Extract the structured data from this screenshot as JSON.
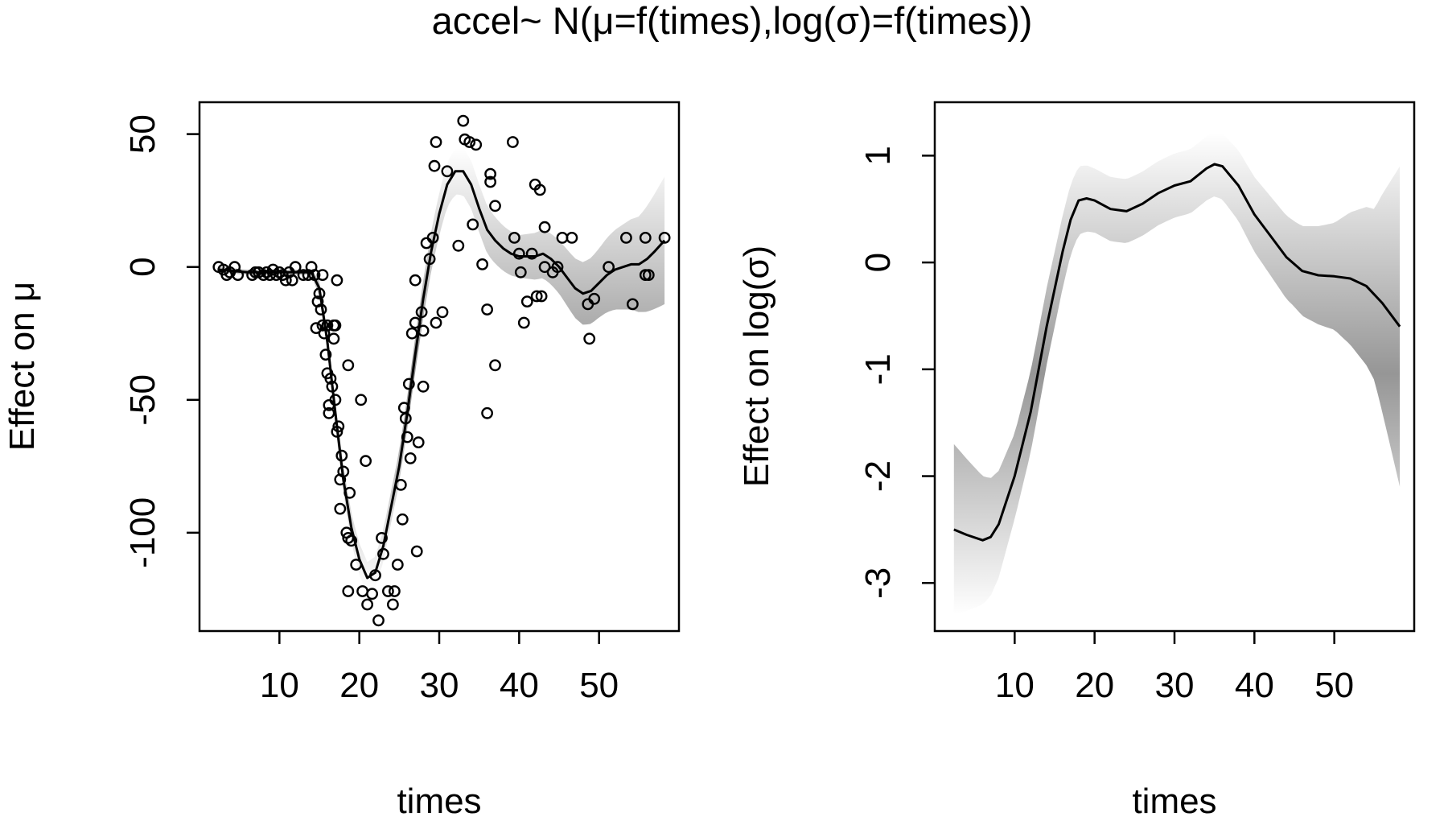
{
  "title": "accel~ N(μ=f(times),log(σ)=f(times))",
  "chart_data": [
    {
      "type": "scatter",
      "xlabel": "times",
      "ylabel": "Effect on μ",
      "xlim": [
        0,
        60
      ],
      "ylim": [
        -137,
        62
      ],
      "xticks": [
        10,
        20,
        30,
        40,
        50
      ],
      "yticks": [
        50,
        0,
        -50,
        -100
      ],
      "points": [
        [
          2.4,
          0
        ],
        [
          3.0,
          -1
        ],
        [
          3.4,
          -3
        ],
        [
          3.8,
          -2
        ],
        [
          4.4,
          0
        ],
        [
          4.8,
          -3
        ],
        [
          6.6,
          -3
        ],
        [
          7.0,
          -2
        ],
        [
          7.4,
          -2
        ],
        [
          8.0,
          -3
        ],
        [
          8.4,
          -2
        ],
        [
          8.8,
          -3
        ],
        [
          9.2,
          -1
        ],
        [
          9.6,
          -3
        ],
        [
          10.0,
          -2
        ],
        [
          10.4,
          -3
        ],
        [
          10.8,
          -5
        ],
        [
          11.2,
          -2
        ],
        [
          11.6,
          -5
        ],
        [
          12.0,
          0
        ],
        [
          13.0,
          -3
        ],
        [
          13.6,
          -3
        ],
        [
          14.0,
          0
        ],
        [
          14.4,
          -3
        ],
        [
          14.6,
          -23
        ],
        [
          14.8,
          -13
        ],
        [
          15.0,
          -10
        ],
        [
          15.2,
          -16
        ],
        [
          15.4,
          -3
        ],
        [
          15.4,
          -22
        ],
        [
          15.6,
          -25
        ],
        [
          15.8,
          -33
        ],
        [
          16.0,
          -22
        ],
        [
          16.0,
          -40
        ],
        [
          16.2,
          -55
        ],
        [
          16.2,
          -52
        ],
        [
          16.4,
          -42
        ],
        [
          16.6,
          -45
        ],
        [
          16.8,
          -22
        ],
        [
          16.8,
          -27
        ],
        [
          17.0,
          -22
        ],
        [
          17.0,
          -50
        ],
        [
          17.2,
          -5
        ],
        [
          17.2,
          -62
        ],
        [
          17.4,
          -60
        ],
        [
          17.6,
          -80
        ],
        [
          17.6,
          -91
        ],
        [
          17.8,
          -71
        ],
        [
          18.0,
          -77
        ],
        [
          18.4,
          -100
        ],
        [
          18.6,
          -102
        ],
        [
          18.8,
          -85
        ],
        [
          18.6,
          -37
        ],
        [
          19.0,
          -103
        ],
        [
          18.6,
          -122
        ],
        [
          19.6,
          -112
        ],
        [
          20.2,
          -50
        ],
        [
          20.4,
          -122
        ],
        [
          20.8,
          -73
        ],
        [
          21.0,
          -127
        ],
        [
          21.6,
          -123
        ],
        [
          22.0,
          -116
        ],
        [
          22.4,
          -133
        ],
        [
          22.8,
          -102
        ],
        [
          23.0,
          -108
        ],
        [
          23.6,
          -122
        ],
        [
          24.2,
          -127
        ],
        [
          24.4,
          -122
        ],
        [
          24.8,
          -112
        ],
        [
          25.2,
          -82
        ],
        [
          25.4,
          -95
        ],
        [
          25.6,
          -53
        ],
        [
          25.8,
          -57
        ],
        [
          26.0,
          -64
        ],
        [
          26.2,
          -44
        ],
        [
          26.4,
          -72
        ],
        [
          26.6,
          -25
        ],
        [
          27.0,
          -5
        ],
        [
          27.0,
          -21
        ],
        [
          27.2,
          -107
        ],
        [
          27.4,
          -66
        ],
        [
          27.8,
          -17
        ],
        [
          28.0,
          -45
        ],
        [
          28.0,
          -24
        ],
        [
          28.4,
          9
        ],
        [
          28.8,
          3
        ],
        [
          29.2,
          11
        ],
        [
          29.4,
          38
        ],
        [
          29.6,
          47
        ],
        [
          29.6,
          -21
        ],
        [
          30.4,
          -17
        ],
        [
          31.0,
          36
        ],
        [
          32.4,
          8
        ],
        [
          33.0,
          55
        ],
        [
          33.2,
          48
        ],
        [
          33.8,
          47
        ],
        [
          34.2,
          16
        ],
        [
          34.6,
          46
        ],
        [
          35.4,
          1
        ],
        [
          36.0,
          -16
        ],
        [
          36.0,
          -55
        ],
        [
          36.4,
          35
        ],
        [
          36.4,
          32
        ],
        [
          37.0,
          23
        ],
        [
          37.0,
          -37
        ],
        [
          39.2,
          47
        ],
        [
          39.4,
          11
        ],
        [
          40.0,
          5
        ],
        [
          40.2,
          -2
        ],
        [
          40.6,
          -21
        ],
        [
          41.0,
          -13
        ],
        [
          41.6,
          5
        ],
        [
          42.0,
          31
        ],
        [
          42.2,
          -11
        ],
        [
          42.6,
          29
        ],
        [
          42.8,
          -11
        ],
        [
          43.2,
          0
        ],
        [
          43.2,
          15
        ],
        [
          44.2,
          -2
        ],
        [
          44.8,
          0
        ],
        [
          45.4,
          11
        ],
        [
          46.6,
          11
        ],
        [
          48.6,
          -14
        ],
        [
          48.8,
          -27
        ],
        [
          49.4,
          -12
        ],
        [
          51.2,
          0
        ],
        [
          53.4,
          11
        ],
        [
          54.2,
          -14
        ],
        [
          55.8,
          11
        ],
        [
          55.8,
          -3
        ],
        [
          56.2,
          -3
        ],
        [
          58.2,
          11
        ]
      ],
      "fit": [
        [
          2.4,
          -1
        ],
        [
          6,
          -2
        ],
        [
          10,
          -2
        ],
        [
          14,
          -2
        ],
        [
          15,
          -8
        ],
        [
          16,
          -28
        ],
        [
          17,
          -55
        ],
        [
          18,
          -80
        ],
        [
          19,
          -98
        ],
        [
          20,
          -110
        ],
        [
          21,
          -117
        ],
        [
          22,
          -115
        ],
        [
          23,
          -105
        ],
        [
          24,
          -90
        ],
        [
          25,
          -75
        ],
        [
          26,
          -55
        ],
        [
          27,
          -33
        ],
        [
          28,
          -12
        ],
        [
          29,
          6
        ],
        [
          30,
          20
        ],
        [
          31,
          31
        ],
        [
          32,
          36
        ],
        [
          33,
          36
        ],
        [
          34,
          31
        ],
        [
          35,
          22
        ],
        [
          36,
          14
        ],
        [
          37,
          10
        ],
        [
          38,
          7
        ],
        [
          39,
          5
        ],
        [
          40,
          4
        ],
        [
          41,
          4
        ],
        [
          42,
          4
        ],
        [
          43,
          5
        ],
        [
          44,
          3
        ],
        [
          45,
          0
        ],
        [
          46,
          -4
        ],
        [
          47,
          -8
        ],
        [
          48,
          -10
        ],
        [
          49,
          -9
        ],
        [
          50,
          -6
        ],
        [
          51,
          -3
        ],
        [
          52,
          -1
        ],
        [
          53,
          0
        ],
        [
          54,
          1
        ],
        [
          55,
          1
        ],
        [
          56,
          3
        ],
        [
          57,
          6
        ],
        [
          58.2,
          10
        ]
      ],
      "interval_half_width": [
        [
          2.4,
          1
        ],
        [
          14,
          1
        ],
        [
          15,
          3
        ],
        [
          20,
          6
        ],
        [
          26,
          6
        ],
        [
          30,
          8
        ],
        [
          33,
          9
        ],
        [
          36,
          9
        ],
        [
          40,
          8
        ],
        [
          45,
          10
        ],
        [
          50,
          13
        ],
        [
          55,
          18
        ],
        [
          58.2,
          24
        ]
      ]
    },
    {
      "type": "line",
      "xlabel": "times",
      "ylabel": "Effect on log(σ)",
      "xlim": [
        0,
        60
      ],
      "ylim": [
        -3.45,
        1.5
      ],
      "xticks": [
        10,
        20,
        30,
        40,
        50
      ],
      "yticks": [
        1,
        0,
        -1,
        -2,
        -3
      ],
      "fit": [
        [
          2.4,
          -2.5
        ],
        [
          4,
          -2.55
        ],
        [
          6,
          -2.6
        ],
        [
          7,
          -2.57
        ],
        [
          8,
          -2.45
        ],
        [
          10,
          -2.0
        ],
        [
          12,
          -1.4
        ],
        [
          14,
          -0.6
        ],
        [
          16,
          0.1
        ],
        [
          17,
          0.4
        ],
        [
          18,
          0.58
        ],
        [
          19,
          0.6
        ],
        [
          20,
          0.58
        ],
        [
          22,
          0.5
        ],
        [
          24,
          0.48
        ],
        [
          26,
          0.55
        ],
        [
          28,
          0.65
        ],
        [
          30,
          0.72
        ],
        [
          32,
          0.76
        ],
        [
          34,
          0.88
        ],
        [
          35,
          0.92
        ],
        [
          36,
          0.9
        ],
        [
          38,
          0.72
        ],
        [
          40,
          0.45
        ],
        [
          42,
          0.25
        ],
        [
          44,
          0.05
        ],
        [
          46,
          -0.08
        ],
        [
          48,
          -0.12
        ],
        [
          50,
          -0.13
        ],
        [
          52,
          -0.15
        ],
        [
          54,
          -0.22
        ],
        [
          56,
          -0.38
        ],
        [
          58.2,
          -0.6
        ]
      ],
      "interval_half_width": [
        [
          2.4,
          0.8
        ],
        [
          6,
          0.6
        ],
        [
          10,
          0.4
        ],
        [
          15,
          0.35
        ],
        [
          20,
          0.3
        ],
        [
          25,
          0.3
        ],
        [
          30,
          0.3
        ],
        [
          35,
          0.3
        ],
        [
          40,
          0.35
        ],
        [
          45,
          0.4
        ],
        [
          50,
          0.5
        ],
        [
          55,
          0.8
        ],
        [
          58.2,
          1.5
        ]
      ]
    }
  ]
}
